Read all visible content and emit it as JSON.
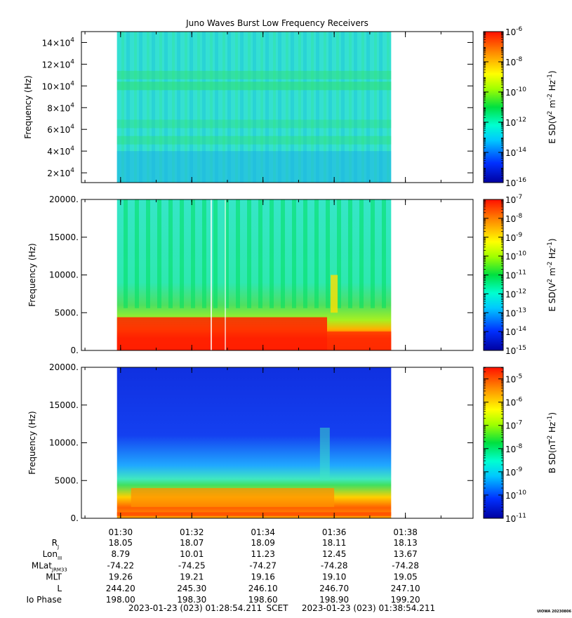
{
  "title": "Juno Waves Burst Low Frequency Receivers",
  "credit": "UIOWA 20230806",
  "colors": {
    "axis": "#000000",
    "background": "#ffffff"
  },
  "chart_data": [
    {
      "type": "heatmap",
      "name": "panel-1",
      "ylabel": "Frequency (Hz)",
      "ylim": [
        11000,
        150000
      ],
      "yticks": [
        {
          "v": 20000,
          "base": "2×10",
          "exp": "4"
        },
        {
          "v": 40000,
          "base": "4×10",
          "exp": "4"
        },
        {
          "v": 60000,
          "base": "6×10",
          "exp": "4"
        },
        {
          "v": 80000,
          "base": "8×10",
          "exp": "4"
        },
        {
          "v": 100000,
          "base": "10×10",
          "exp": "4"
        },
        {
          "v": 120000,
          "base": "12×10",
          "exp": "4"
        },
        {
          "v": 140000,
          "base": "14×10",
          "exp": "4"
        }
      ],
      "colorbar": {
        "label_parts": [
          "E SD(V",
          "2",
          " m",
          "-2",
          " Hz",
          "-1",
          ")"
        ],
        "log_range": [
          -16,
          -6
        ],
        "ticks": [
          {
            "v": -6,
            "base": "10",
            "exp": "-6"
          },
          {
            "v": -8,
            "base": "10",
            "exp": "-8"
          },
          {
            "v": -10,
            "base": "10",
            "exp": "-10"
          },
          {
            "v": -12,
            "base": "10",
            "exp": "-12"
          },
          {
            "v": -14,
            "base": "10",
            "exp": "-14"
          },
          {
            "v": -16,
            "base": "10",
            "exp": "-16"
          }
        ]
      }
    },
    {
      "type": "heatmap",
      "name": "panel-2",
      "ylabel": "Frequency (Hz)",
      "ylim": [
        0,
        20000
      ],
      "yticks": [
        {
          "v": 0,
          "label": "0."
        },
        {
          "v": 5000,
          "label": "5000."
        },
        {
          "v": 10000,
          "label": "10000."
        },
        {
          "v": 15000,
          "label": "15000."
        },
        {
          "v": 20000,
          "label": "20000."
        }
      ],
      "colorbar": {
        "label_parts": [
          "E SD(V",
          "2",
          " m",
          "-2",
          " Hz",
          "-1",
          ")"
        ],
        "log_range": [
          -15,
          -7
        ],
        "ticks": [
          {
            "v": -7,
            "base": "10",
            "exp": "-7"
          },
          {
            "v": -8,
            "base": "10",
            "exp": "-8"
          },
          {
            "v": -9,
            "base": "10",
            "exp": "-9"
          },
          {
            "v": -10,
            "base": "10",
            "exp": "-10"
          },
          {
            "v": -11,
            "base": "10",
            "exp": "-11"
          },
          {
            "v": -12,
            "base": "10",
            "exp": "-12"
          },
          {
            "v": -13,
            "base": "10",
            "exp": "-13"
          },
          {
            "v": -14,
            "base": "10",
            "exp": "-14"
          },
          {
            "v": -15,
            "base": "10",
            "exp": "-15"
          }
        ]
      }
    },
    {
      "type": "heatmap",
      "name": "panel-3",
      "ylabel": "Frequency (Hz)",
      "ylim": [
        0,
        20000
      ],
      "yticks": [
        {
          "v": 0,
          "label": "0."
        },
        {
          "v": 5000,
          "label": "5000."
        },
        {
          "v": 10000,
          "label": "10000."
        },
        {
          "v": 15000,
          "label": "15000."
        },
        {
          "v": 20000,
          "label": "20000."
        }
      ],
      "colorbar": {
        "label_parts": [
          "B SD(nT",
          "2",
          " Hz",
          "-1",
          ")"
        ],
        "log_range": [
          -11,
          -4.5
        ],
        "ticks": [
          {
            "v": -5,
            "base": "10",
            "exp": "-5"
          },
          {
            "v": -6,
            "base": "10",
            "exp": "-6"
          },
          {
            "v": -7,
            "base": "10",
            "exp": "-7"
          },
          {
            "v": -8,
            "base": "10",
            "exp": "-8"
          },
          {
            "v": -9,
            "base": "10",
            "exp": "-9"
          },
          {
            "v": -10,
            "base": "10",
            "exp": "-10"
          },
          {
            "v": -11,
            "base": "10",
            "exp": "-11"
          }
        ]
      }
    }
  ],
  "x_axis": {
    "range_minutes": [
      88.9,
      99.9
    ],
    "data_range_minutes": [
      89.9,
      97.6
    ],
    "ticks": [
      {
        "v": 90,
        "label": "01:30"
      },
      {
        "v": 92,
        "label": "01:32"
      },
      {
        "v": 94,
        "label": "01:34"
      },
      {
        "v": 96,
        "label": "01:36"
      },
      {
        "v": 98,
        "label": "01:38"
      }
    ]
  },
  "ephemeris": [
    {
      "label": "R",
      "sub": "J",
      "values": [
        "18.05",
        "18.07",
        "18.09",
        "18.11",
        "18.13"
      ]
    },
    {
      "label": "Lon",
      "sub": "III",
      "values": [
        "8.79",
        "10.01",
        "11.23",
        "12.45",
        "13.67"
      ]
    },
    {
      "label": "MLat",
      "sub": "JRM33",
      "values": [
        "-74.22",
        "-74.25",
        "-74.27",
        "-74.28",
        "-74.28"
      ]
    },
    {
      "label": "MLT",
      "sub": "",
      "values": [
        "19.26",
        "19.21",
        "19.16",
        "19.10",
        "19.05"
      ]
    },
    {
      "label": "L",
      "sub": "",
      "values": [
        "244.20",
        "245.30",
        "246.10",
        "246.70",
        "247.10"
      ]
    },
    {
      "label": "Io Phase",
      "sub": "",
      "values": [
        "198.00",
        "198.30",
        "198.60",
        "198.90",
        "199.20"
      ]
    }
  ],
  "footer": {
    "start": "2023-01-23 (023) 01:28:54.211",
    "frame": "SCET",
    "end": "2023-01-23 (023) 01:38:54.211"
  }
}
